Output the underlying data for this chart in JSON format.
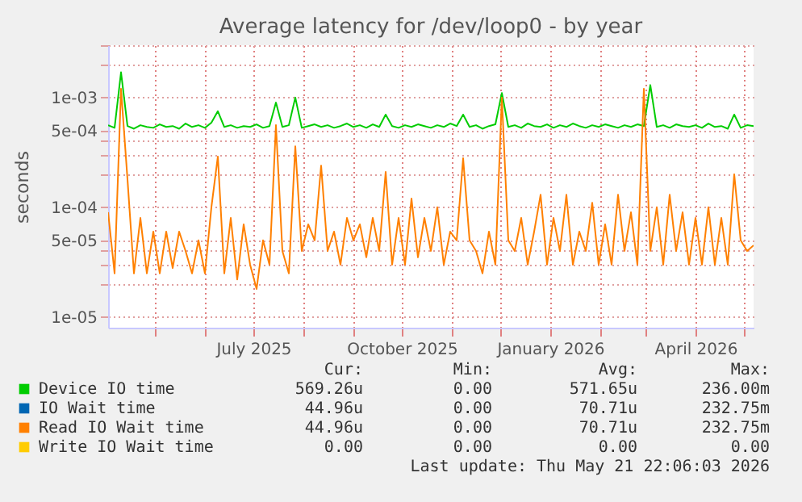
{
  "chart_data": {
    "type": "line",
    "title": "Average latency for /dev/loop0 - by year",
    "ylabel": "seconds",
    "x": [
      "2025-04-02",
      "2025-04-06",
      "2025-04-10",
      "2025-04-14",
      "2025-04-18",
      "2025-04-22",
      "2025-04-26",
      "2025-04-30",
      "2025-05-04",
      "2025-05-08",
      "2025-05-12",
      "2025-05-16",
      "2025-05-20",
      "2025-05-24",
      "2025-05-28",
      "2025-06-01",
      "2025-06-05",
      "2025-06-09",
      "2025-06-13",
      "2025-06-17",
      "2025-06-21",
      "2025-06-25",
      "2025-06-29",
      "2025-07-03",
      "2025-07-07",
      "2025-07-11",
      "2025-07-15",
      "2025-07-19",
      "2025-07-23",
      "2025-07-27",
      "2025-07-31",
      "2025-08-04",
      "2025-08-08",
      "2025-08-12",
      "2025-08-16",
      "2025-08-20",
      "2025-08-24",
      "2025-08-28",
      "2025-09-01",
      "2025-09-05",
      "2025-09-09",
      "2025-09-13",
      "2025-09-17",
      "2025-09-21",
      "2025-09-25",
      "2025-09-29",
      "2025-10-03",
      "2025-10-07",
      "2025-10-11",
      "2025-10-15",
      "2025-10-19",
      "2025-10-23",
      "2025-10-27",
      "2025-10-31",
      "2025-11-04",
      "2025-11-08",
      "2025-11-12",
      "2025-11-16",
      "2025-11-20",
      "2025-11-24",
      "2025-11-28",
      "2025-12-02",
      "2025-12-06",
      "2025-12-10",
      "2025-12-14",
      "2025-12-18",
      "2025-12-22",
      "2025-12-26",
      "2025-12-30",
      "2026-01-03",
      "2026-01-07",
      "2026-01-11",
      "2026-01-15",
      "2026-01-19",
      "2026-01-23",
      "2026-01-27",
      "2026-01-31",
      "2026-02-04",
      "2026-02-08",
      "2026-02-12",
      "2026-02-16",
      "2026-02-20",
      "2026-02-24",
      "2026-02-28",
      "2026-03-04",
      "2026-03-08",
      "2026-03-12",
      "2026-03-16",
      "2026-03-20",
      "2026-03-24",
      "2026-03-28",
      "2026-04-01",
      "2026-04-05",
      "2026-04-09",
      "2026-04-13",
      "2026-04-17",
      "2026-04-21",
      "2026-04-25",
      "2026-04-29",
      "2026-05-03",
      "2026-05-07"
    ],
    "series": [
      {
        "name": "Device IO time",
        "color": "#00cc00",
        "values": [
          0.00056,
          0.00053,
          0.0017,
          0.00055,
          0.00052,
          0.00056,
          0.00054,
          0.00053,
          0.00057,
          0.00054,
          0.00055,
          0.00052,
          0.00058,
          0.00054,
          0.00056,
          0.00053,
          0.00059,
          0.00075,
          0.00054,
          0.00056,
          0.00053,
          0.00055,
          0.00054,
          0.00057,
          0.00053,
          0.00055,
          0.0009,
          0.00054,
          0.00056,
          0.001,
          0.00053,
          0.00055,
          0.00057,
          0.00054,
          0.00056,
          0.00053,
          0.00055,
          0.00058,
          0.00054,
          0.00056,
          0.00053,
          0.00057,
          0.00054,
          0.0007,
          0.00055,
          0.00053,
          0.00056,
          0.00054,
          0.00057,
          0.00055,
          0.00053,
          0.00056,
          0.00054,
          0.00058,
          0.00055,
          0.0007,
          0.00054,
          0.00056,
          0.00052,
          0.00055,
          0.00057,
          0.0011,
          0.00054,
          0.00056,
          0.00053,
          0.00058,
          0.00055,
          0.00054,
          0.00057,
          0.00053,
          0.00056,
          0.00054,
          0.00058,
          0.00055,
          0.00053,
          0.00056,
          0.00054,
          0.00057,
          0.00055,
          0.00053,
          0.00056,
          0.00054,
          0.00057,
          0.00055,
          0.0013,
          0.00054,
          0.00056,
          0.00053,
          0.00057,
          0.00055,
          0.00054,
          0.00056,
          0.00053,
          0.00058,
          0.00054,
          0.00055,
          0.00052,
          0.0007,
          0.00053,
          0.00056,
          0.00055
        ]
      },
      {
        "name": "IO Wait time",
        "color": "#0066b3",
        "values": [
          null,
          null,
          null,
          null,
          null,
          null,
          null,
          null,
          null,
          null,
          null,
          null,
          null,
          null,
          null,
          null,
          null,
          null,
          null,
          null,
          null,
          null,
          null,
          null,
          null,
          null,
          null,
          null,
          null,
          null,
          null,
          null,
          null,
          null,
          null,
          null,
          null,
          null,
          null,
          null,
          null,
          null,
          null,
          null,
          null,
          null,
          null,
          null,
          null,
          null,
          null,
          null,
          null,
          null,
          null,
          null,
          null,
          null,
          null,
          null,
          null,
          null,
          null,
          null,
          null,
          null,
          null,
          null,
          null,
          null,
          null,
          null,
          null,
          null,
          null,
          null,
          null,
          null,
          null,
          null,
          null,
          null,
          null,
          null,
          null,
          null,
          null,
          null,
          null,
          null,
          null,
          null,
          null,
          null,
          null,
          null,
          null,
          null,
          null,
          null,
          null
        ]
      },
      {
        "name": "Read IO Wait time",
        "color": "#ff8000",
        "values": [
          9e-05,
          2.5e-05,
          0.0012,
          0.00018,
          2.5e-05,
          8e-05,
          2.5e-05,
          6e-05,
          2.5e-05,
          6e-05,
          2.8e-05,
          6e-05,
          4e-05,
          2.5e-05,
          5e-05,
          2.5e-05,
          0.0001,
          0.00029,
          2.5e-05,
          8e-05,
          2.2e-05,
          7e-05,
          3e-05,
          1.8e-05,
          5e-05,
          3e-05,
          0.00056,
          4e-05,
          2.5e-05,
          0.00036,
          4e-05,
          7e-05,
          5e-05,
          0.00024,
          4e-05,
          6e-05,
          3e-05,
          8e-05,
          5e-05,
          7e-05,
          3.5e-05,
          8e-05,
          4e-05,
          0.00021,
          3e-05,
          8e-05,
          3e-05,
          0.00012,
          3.5e-05,
          8e-05,
          4e-05,
          0.0001,
          3e-05,
          6e-05,
          5e-05,
          0.00028,
          5e-05,
          4e-05,
          2.5e-05,
          6e-05,
          3e-05,
          0.001,
          5e-05,
          4e-05,
          8e-05,
          3e-05,
          6e-05,
          0.00013,
          3e-05,
          8e-05,
          4e-05,
          0.00013,
          3e-05,
          6e-05,
          4e-05,
          0.00011,
          3e-05,
          7e-05,
          3e-05,
          0.00013,
          4e-05,
          9e-05,
          3e-05,
          0.0012,
          4e-05,
          0.0001,
          3e-05,
          0.00013,
          4e-05,
          9e-05,
          3e-05,
          8e-05,
          3e-05,
          0.0001,
          3e-05,
          8e-05,
          3e-05,
          0.0002,
          5e-05,
          4e-05,
          4.5e-05
        ]
      },
      {
        "name": "Write IO Wait time",
        "color": "#ffcc00",
        "values": [
          null,
          null,
          null,
          null,
          null,
          null,
          null,
          null,
          null,
          null,
          null,
          null,
          null,
          null,
          null,
          null,
          null,
          null,
          null,
          null,
          null,
          null,
          null,
          null,
          null,
          null,
          null,
          null,
          null,
          null,
          null,
          null,
          null,
          null,
          null,
          null,
          null,
          null,
          null,
          null,
          null,
          null,
          null,
          null,
          null,
          null,
          null,
          null,
          null,
          null,
          null,
          null,
          null,
          null,
          null,
          null,
          null,
          null,
          null,
          null,
          null,
          null,
          null,
          null,
          null,
          null,
          null,
          null,
          null,
          null,
          null,
          null,
          null,
          null,
          null,
          null,
          null,
          null,
          null,
          null,
          null,
          null,
          null,
          null,
          null,
          null,
          null,
          null,
          null,
          null,
          null,
          null,
          null,
          null,
          null,
          null,
          null,
          null,
          null,
          null,
          null
        ]
      }
    ],
    "xlim": [
      "2025-04-02",
      "2026-05-07"
    ],
    "xticks": [
      {
        "value": "2025-05-01",
        "label": null
      },
      {
        "value": "2025-06-01",
        "label": null
      },
      {
        "value": "2025-07-01",
        "label": "July 2025"
      },
      {
        "value": "2025-08-01",
        "label": null
      },
      {
        "value": "2025-09-01",
        "label": null
      },
      {
        "value": "2025-10-01",
        "label": "October 2025"
      },
      {
        "value": "2025-11-01",
        "label": null
      },
      {
        "value": "2025-12-01",
        "label": null
      },
      {
        "value": "2026-01-01",
        "label": "January 2026"
      },
      {
        "value": "2026-02-01",
        "label": null
      },
      {
        "value": "2026-03-01",
        "label": null
      },
      {
        "value": "2026-04-01",
        "label": "April 2026"
      },
      {
        "value": "2026-05-01",
        "label": null
      }
    ],
    "ylim": [
      8e-06,
      0.003
    ],
    "yticks": [
      {
        "value": 1e-05,
        "label": "1e-05"
      },
      {
        "value": 2e-05,
        "label": null
      },
      {
        "value": 3e-05,
        "label": null
      },
      {
        "value": 4e-05,
        "label": null
      },
      {
        "value": 5e-05,
        "label": "5e-05"
      },
      {
        "value": 0.0001,
        "label": "1e-04"
      },
      {
        "value": 0.0002,
        "label": null
      },
      {
        "value": 0.0003,
        "label": null
      },
      {
        "value": 0.0004,
        "label": null
      },
      {
        "value": 0.0005,
        "label": "5e-04"
      },
      {
        "value": 0.001,
        "label": "1e-03"
      },
      {
        "value": 0.002,
        "label": null
      },
      {
        "value": 0.003,
        "label": null
      }
    ],
    "log": true,
    "grid": true,
    "legend": "bottom",
    "marker": "none",
    "line_style": "solid",
    "annotations": [
      "Cur:",
      "Min:",
      "Avg:",
      "Max:",
      "569.26u",
      "0.00",
      "571.65u",
      "236.00m",
      "44.96u",
      "0.00",
      "70.71u",
      "232.75m",
      "44.96u",
      "0.00",
      "70.71u",
      "232.75m",
      "0.00",
      "0.00",
      "0.00",
      "0.00",
      "Last update: Thu May 21 22:06:03 2026"
    ]
  }
}
